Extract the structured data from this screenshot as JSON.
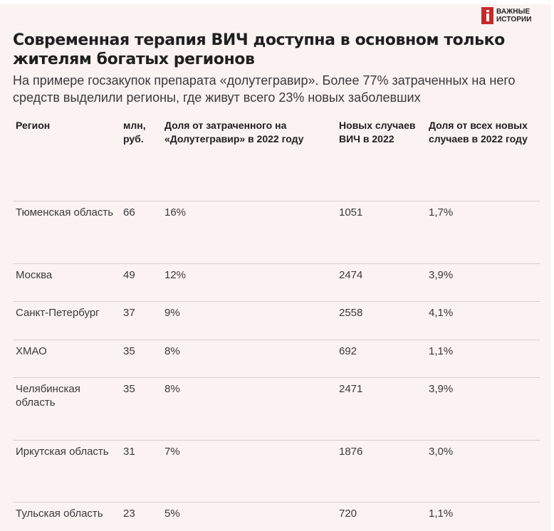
{
  "header": {
    "title": "Современная терапия ВИЧ доступна в основном только жителям богатых регионов",
    "subtitle": "На примере госзакупок препарата «долутегравир». Более 77% затраченных на него средств выделили регионы, где живут всего 23% новых заболевших",
    "logo_line1": "ВАЖНЫЕ",
    "logo_line2": "ИСТОРИИ"
  },
  "chart_data": {
    "type": "table",
    "columns": [
      "Регион",
      "млн, руб.",
      "Доля от затраченного на «Долутегравир» в 2022 году",
      "Новых случаев ВИЧ в 2022",
      "Доля от всех новых случаев в 2022 году"
    ],
    "rows": [
      [
        "Тюменская область",
        "66",
        "16%",
        "1051",
        "1,7%"
      ],
      [
        "Москва",
        "49",
        "12%",
        "2474",
        "3,9%"
      ],
      [
        "Санкт-Петербург",
        "37",
        "9%",
        "2558",
        "4,1%"
      ],
      [
        "ХМАО",
        "35",
        "8%",
        "692",
        "1,1%"
      ],
      [
        "Челябинская область",
        "35",
        "8%",
        "2471",
        "3,9%"
      ],
      [
        "Иркутская область",
        "31",
        "7%",
        "1876",
        "3,0%"
      ],
      [
        "Тульская область",
        "23",
        "5%",
        "720",
        "1,1%"
      ]
    ]
  }
}
